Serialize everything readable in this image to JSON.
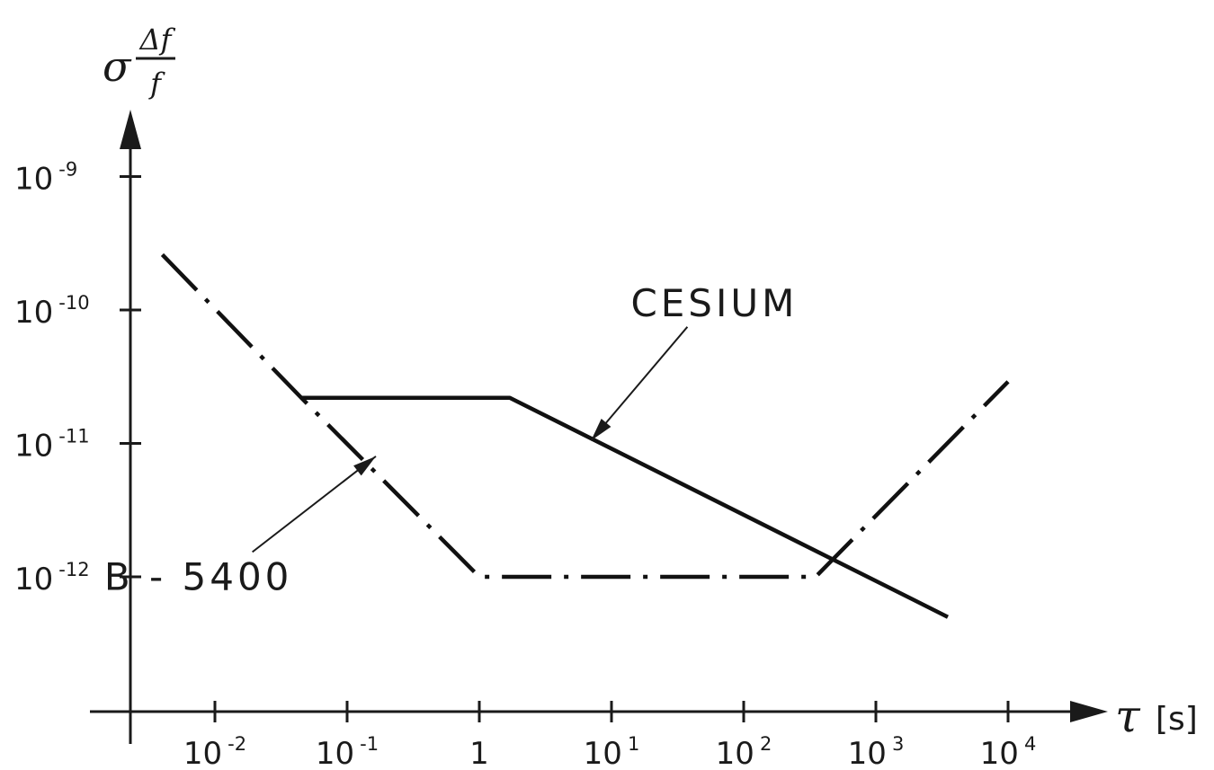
{
  "chart_data": {
    "type": "line",
    "x_scale": "log",
    "y_scale": "log",
    "xlim": [
      0.001,
      100000
    ],
    "ylim": [
      2e-13,
      3e-09
    ],
    "grid": false,
    "legend": "none",
    "ylabel": {
      "symbol": "σ",
      "numerator": "Δf",
      "denominator": "f"
    },
    "xlabel": {
      "symbol": "τ",
      "unit": "[s]"
    },
    "x_ticks": [
      {
        "value": 0.01,
        "base": "10",
        "exp": "-2"
      },
      {
        "value": 0.1,
        "base": "10",
        "exp": "-1"
      },
      {
        "value": 1,
        "base": "1",
        "exp": ""
      },
      {
        "value": 10,
        "base": "10",
        "exp": "1"
      },
      {
        "value": 100,
        "base": "10",
        "exp": "2"
      },
      {
        "value": 1000,
        "base": "10",
        "exp": "3"
      },
      {
        "value": 10000,
        "base": "10",
        "exp": "4"
      }
    ],
    "y_ticks": [
      {
        "value": 1e-09,
        "base": "10",
        "exp": "-9"
      },
      {
        "value": 1e-10,
        "base": "10",
        "exp": "-10"
      },
      {
        "value": 1e-11,
        "base": "10",
        "exp": "-11"
      },
      {
        "value": 1e-12,
        "base": "10",
        "exp": "-12"
      }
    ],
    "series": [
      {
        "name": "CESIUM",
        "style": "solid",
        "x": [
          0.045,
          1.7,
          3500
        ],
        "y": [
          2.2e-11,
          2.2e-11,
          5e-13
        ]
      },
      {
        "name": "B-5400",
        "style": "dash-dot",
        "x": [
          0.004,
          0.045,
          1,
          350,
          10000
        ],
        "y": [
          2.6e-10,
          2.2e-11,
          1e-12,
          1e-12,
          2.9e-11
        ]
      }
    ],
    "annotations": [
      {
        "series": "CESIUM",
        "text": "CESIUM",
        "text_at": [
          60,
          9e-11
        ],
        "arrow_to": [
          7,
          1.05e-11
        ]
      },
      {
        "series": "B-5400",
        "text": "B - 5400",
        "text_at": [
          0.0075,
          8e-13
        ],
        "arrow_to": [
          0.165,
          8e-12
        ]
      }
    ]
  }
}
